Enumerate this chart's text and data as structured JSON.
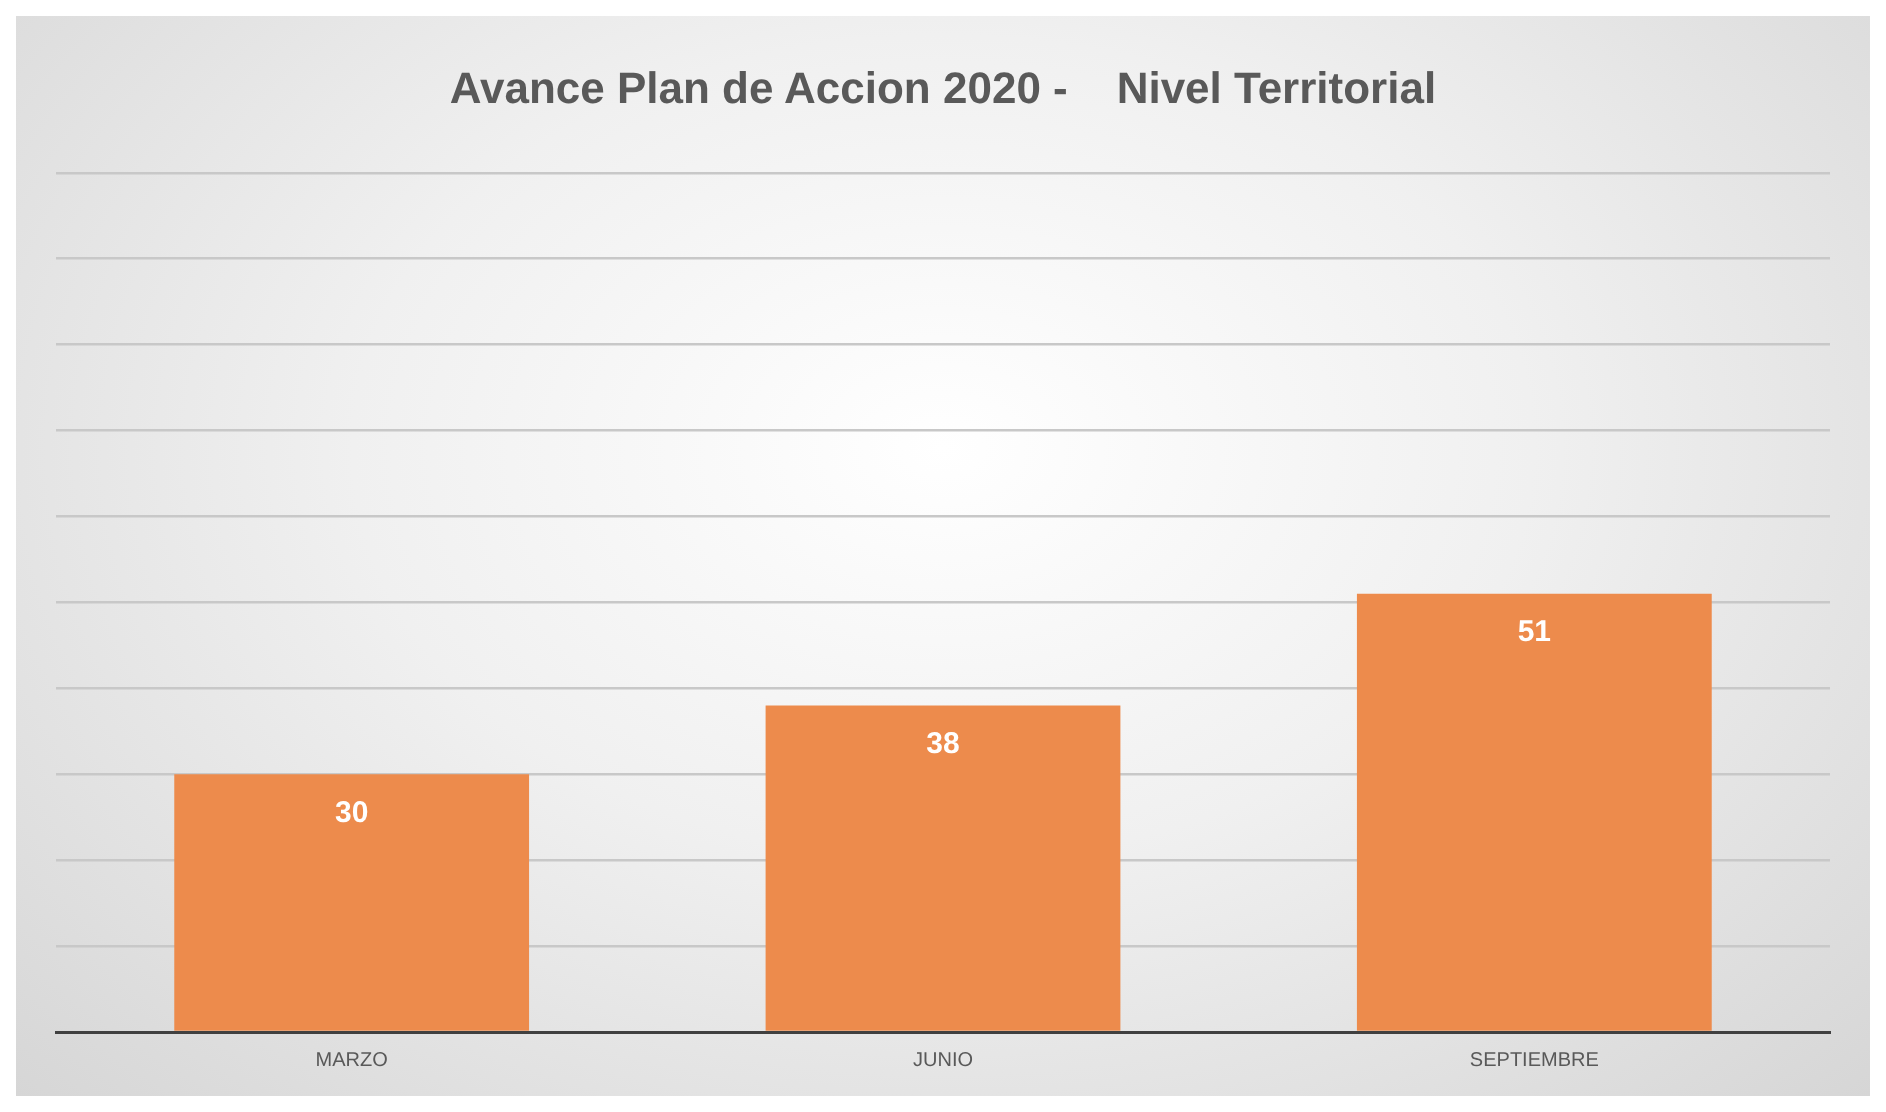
{
  "chart_data": {
    "type": "bar",
    "title": "Avance Plan de Accion 2020 -    Nivel Territorial",
    "categories": [
      "MARZO",
      "JUNIO",
      "SEPTIEMBRE"
    ],
    "values": [
      30,
      38,
      51
    ],
    "color": "#ed8b4c",
    "ylim": [
      0,
      100
    ],
    "yticks": [
      {
        "value": 0,
        "label": null
      },
      {
        "value": 10,
        "label": null
      },
      {
        "value": 20,
        "label": null
      },
      {
        "value": 30,
        "label": null
      },
      {
        "value": 40,
        "label": null
      },
      {
        "value": 50,
        "label": null
      },
      {
        "value": 60,
        "label": null
      },
      {
        "value": 70,
        "label": null
      },
      {
        "value": 80,
        "label": null
      },
      {
        "value": 90,
        "label": null
      },
      {
        "value": 100,
        "label": null
      }
    ],
    "tick_labels": "x",
    "grid": "y",
    "legend": false,
    "data_labels": true
  }
}
